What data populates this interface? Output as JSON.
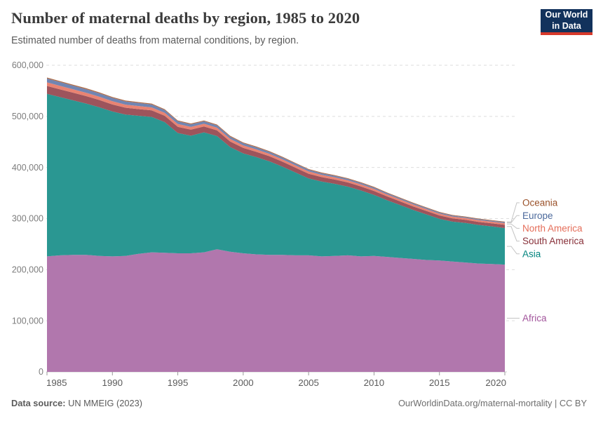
{
  "header": {
    "title": "Number of maternal deaths by region, 1985 to 2020",
    "subtitle": "Estimated number of deaths from maternal conditions, by region.",
    "logo": {
      "line1": "Our World",
      "line2": "in Data",
      "bg_color": "#12325c",
      "accent_color": "#d7392b"
    }
  },
  "chart_data": {
    "type": "area",
    "stacked": true,
    "title": "Number of maternal deaths by region, 1985 to 2020",
    "xlabel": "",
    "ylabel": "",
    "ylim": [
      0,
      600000
    ],
    "grid": "horizontal-dashed",
    "legend_position": "right",
    "x": [
      1985,
      1986,
      1987,
      1988,
      1989,
      1990,
      1991,
      1992,
      1993,
      1994,
      1995,
      1996,
      1997,
      1998,
      1999,
      2000,
      2001,
      2002,
      2003,
      2004,
      2005,
      2006,
      2007,
      2008,
      2009,
      2010,
      2011,
      2012,
      2013,
      2014,
      2015,
      2016,
      2017,
      2018,
      2019,
      2020
    ],
    "xticks": [
      1985,
      1990,
      1995,
      2000,
      2005,
      2010,
      2015,
      2020
    ],
    "yticks": [
      0,
      100000,
      200000,
      300000,
      400000,
      500000,
      600000
    ],
    "ytick_labels": [
      "0",
      "100,000",
      "200,000",
      "300,000",
      "400,000",
      "500,000",
      "600,000"
    ],
    "series": [
      {
        "name": "Africa",
        "color": "#a2559c",
        "fill": "#b177ad",
        "values": [
          226000,
          228000,
          229000,
          229000,
          227000,
          226000,
          227000,
          231000,
          234000,
          233000,
          232000,
          232000,
          234000,
          240000,
          235000,
          232000,
          230000,
          229000,
          229000,
          228000,
          228000,
          226000,
          227000,
          228000,
          226000,
          227000,
          225000,
          223000,
          221000,
          219000,
          218000,
          216000,
          214000,
          212000,
          211000,
          210000
        ]
      },
      {
        "name": "Asia",
        "color": "#00847e",
        "fill": "#2a9792",
        "values": [
          318000,
          309600,
          302400,
          296000,
          290800,
          283500,
          276500,
          270200,
          265000,
          255800,
          235400,
          230100,
          234700,
          221400,
          205000,
          195600,
          190300,
          183000,
          172600,
          162100,
          150700,
          146400,
          140900,
          134500,
          128900,
          119300,
          110900,
          103300,
          95700,
          89100,
          81500,
          77900,
          77300,
          75500,
          73800,
          71300
        ]
      },
      {
        "name": "South America",
        "color": "#883039",
        "fill": "#9d545c",
        "values": [
          15500,
          15200,
          14900,
          14600,
          14200,
          13800,
          13400,
          13000,
          12700,
          12400,
          12100,
          11800,
          11500,
          11200,
          10900,
          10600,
          10300,
          10000,
          9700,
          9400,
          9100,
          8800,
          8500,
          8200,
          8000,
          7800,
          7500,
          7300,
          7100,
          6900,
          6700,
          6500,
          6300,
          6100,
          6000,
          6500
        ]
      },
      {
        "name": "North America",
        "color": "#e56e5a",
        "fill": "#e98372",
        "values": [
          7000,
          6900,
          6700,
          6600,
          6400,
          6300,
          6100,
          6000,
          5800,
          5700,
          5600,
          5400,
          5300,
          5200,
          5100,
          5000,
          4800,
          4700,
          4600,
          4500,
          4400,
          4300,
          4200,
          4100,
          4000,
          3900,
          3800,
          3700,
          3600,
          3500,
          3400,
          3400,
          3300,
          3300,
          3200,
          3200
        ]
      },
      {
        "name": "Europe",
        "color": "#4c6a9c",
        "fill": "#7185b2",
        "values": [
          7500,
          7300,
          7100,
          6900,
          6700,
          6500,
          6200,
          5900,
          5700,
          5400,
          5200,
          5000,
          4800,
          4600,
          4400,
          4200,
          4000,
          3800,
          3600,
          3400,
          3300,
          3100,
          3000,
          2800,
          2700,
          2600,
          2500,
          2400,
          2300,
          2200,
          2100,
          2000,
          1900,
          1900,
          1800,
          1800
        ]
      },
      {
        "name": "Oceania",
        "color": "#9a5129",
        "fill": "#ad6c4a",
        "values": [
          2000,
          2000,
          1900,
          1900,
          1900,
          1900,
          1800,
          1800,
          1800,
          1700,
          1700,
          1700,
          1700,
          1600,
          1600,
          1600,
          1600,
          1500,
          1500,
          1500,
          1500,
          1400,
          1400,
          1400,
          1400,
          1400,
          1300,
          1300,
          1300,
          1300,
          1300,
          1200,
          1200,
          1200,
          1200,
          1200
        ]
      }
    ]
  },
  "footer": {
    "datasource_label": "Data source:",
    "datasource_value": " UN MMEIG (2023)",
    "credit": "OurWorldinData.org/maternal-mortality | CC BY"
  }
}
